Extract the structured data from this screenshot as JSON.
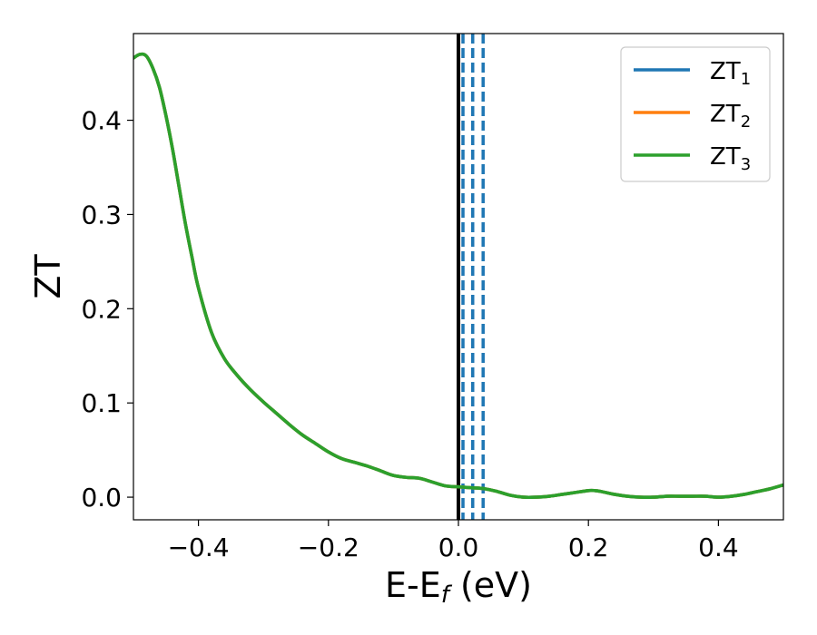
{
  "chart_data": {
    "type": "line",
    "xlabel": "E-E",
    "xlabel_sub": "f",
    "xlabel_unit": " (eV)",
    "ylabel": "ZT",
    "xlim": [
      -0.5,
      0.5
    ],
    "ylim": [
      -0.024,
      0.492
    ],
    "xticks": [
      -0.4,
      -0.2,
      0.0,
      0.2,
      0.4
    ],
    "xtick_labels": [
      "−0.4",
      "−0.2",
      "0.0",
      "0.2",
      "0.4"
    ],
    "yticks": [
      0.0,
      0.1,
      0.2,
      0.3,
      0.4
    ],
    "ytick_labels": [
      "0.0",
      "0.1",
      "0.2",
      "0.3",
      "0.4"
    ],
    "legend_position": "top-right",
    "grid": false,
    "series": [
      {
        "name": "ZT",
        "name_sub": "1",
        "color": "#1f77b4",
        "x": [
          -0.5,
          -0.49,
          -0.48,
          -0.47,
          -0.46,
          -0.45,
          -0.44,
          -0.43,
          -0.42,
          -0.41,
          -0.4,
          -0.38,
          -0.36,
          -0.34,
          -0.32,
          -0.3,
          -0.28,
          -0.26,
          -0.24,
          -0.22,
          -0.2,
          -0.18,
          -0.16,
          -0.14,
          -0.12,
          -0.1,
          -0.08,
          -0.06,
          -0.04,
          -0.02,
          0.0,
          0.02,
          0.04,
          0.06,
          0.08,
          0.1,
          0.12,
          0.14,
          0.16,
          0.18,
          0.2,
          0.21,
          0.22,
          0.24,
          0.26,
          0.28,
          0.3,
          0.32,
          0.34,
          0.36,
          0.38,
          0.4,
          0.42,
          0.44,
          0.46,
          0.48,
          0.5
        ],
        "values": [
          0.466,
          0.47,
          0.468,
          0.455,
          0.435,
          0.405,
          0.37,
          0.33,
          0.29,
          0.255,
          0.222,
          0.175,
          0.147,
          0.129,
          0.114,
          0.101,
          0.089,
          0.077,
          0.066,
          0.057,
          0.048,
          0.041,
          0.037,
          0.033,
          0.028,
          0.023,
          0.021,
          0.02,
          0.016,
          0.012,
          0.011,
          0.01,
          0.009,
          0.006,
          0.002,
          0.0,
          0.0,
          0.001,
          0.003,
          0.005,
          0.007,
          0.007,
          0.006,
          0.003,
          0.001,
          0.0,
          0.0,
          0.001,
          0.001,
          0.001,
          0.001,
          0.0,
          0.001,
          0.003,
          0.006,
          0.009,
          0.013
        ]
      },
      {
        "name": "ZT",
        "name_sub": "2",
        "color": "#ff7f0e",
        "x": [
          -0.5,
          -0.49,
          -0.48,
          -0.47,
          -0.46,
          -0.45,
          -0.44,
          -0.43,
          -0.42,
          -0.41,
          -0.4,
          -0.38,
          -0.36,
          -0.34,
          -0.32,
          -0.3,
          -0.28,
          -0.26,
          -0.24,
          -0.22,
          -0.2,
          -0.18,
          -0.16,
          -0.14,
          -0.12,
          -0.1,
          -0.08,
          -0.06,
          -0.04,
          -0.02,
          0.0,
          0.02,
          0.04,
          0.06,
          0.08,
          0.1,
          0.12,
          0.14,
          0.16,
          0.18,
          0.2,
          0.21,
          0.22,
          0.24,
          0.26,
          0.28,
          0.3,
          0.32,
          0.34,
          0.36,
          0.38,
          0.4,
          0.42,
          0.44,
          0.46,
          0.48,
          0.5
        ],
        "values": [
          0.466,
          0.47,
          0.468,
          0.455,
          0.435,
          0.405,
          0.37,
          0.33,
          0.29,
          0.255,
          0.222,
          0.175,
          0.147,
          0.129,
          0.114,
          0.101,
          0.089,
          0.077,
          0.066,
          0.057,
          0.048,
          0.041,
          0.037,
          0.033,
          0.028,
          0.023,
          0.021,
          0.02,
          0.016,
          0.012,
          0.011,
          0.01,
          0.009,
          0.006,
          0.002,
          0.0,
          0.0,
          0.001,
          0.003,
          0.005,
          0.007,
          0.007,
          0.006,
          0.003,
          0.001,
          0.0,
          0.0,
          0.001,
          0.001,
          0.001,
          0.001,
          0.0,
          0.001,
          0.003,
          0.006,
          0.009,
          0.013
        ]
      },
      {
        "name": "ZT",
        "name_sub": "3",
        "color": "#2ca02c",
        "x": [
          -0.5,
          -0.49,
          -0.48,
          -0.47,
          -0.46,
          -0.45,
          -0.44,
          -0.43,
          -0.42,
          -0.41,
          -0.4,
          -0.38,
          -0.36,
          -0.34,
          -0.32,
          -0.3,
          -0.28,
          -0.26,
          -0.24,
          -0.22,
          -0.2,
          -0.18,
          -0.16,
          -0.14,
          -0.12,
          -0.1,
          -0.08,
          -0.06,
          -0.04,
          -0.02,
          0.0,
          0.02,
          0.04,
          0.06,
          0.08,
          0.1,
          0.12,
          0.14,
          0.16,
          0.18,
          0.2,
          0.21,
          0.22,
          0.24,
          0.26,
          0.28,
          0.3,
          0.32,
          0.34,
          0.36,
          0.38,
          0.4,
          0.42,
          0.44,
          0.46,
          0.48,
          0.5
        ],
        "values": [
          0.466,
          0.47,
          0.468,
          0.455,
          0.435,
          0.405,
          0.37,
          0.33,
          0.29,
          0.255,
          0.222,
          0.175,
          0.147,
          0.129,
          0.114,
          0.101,
          0.089,
          0.077,
          0.066,
          0.057,
          0.048,
          0.041,
          0.037,
          0.033,
          0.028,
          0.023,
          0.021,
          0.02,
          0.016,
          0.012,
          0.011,
          0.01,
          0.009,
          0.006,
          0.002,
          0.0,
          0.0,
          0.001,
          0.003,
          0.005,
          0.007,
          0.007,
          0.006,
          0.003,
          0.001,
          0.0,
          0.0,
          0.001,
          0.001,
          0.001,
          0.001,
          0.0,
          0.001,
          0.003,
          0.006,
          0.009,
          0.013
        ]
      }
    ],
    "vertical_lines": [
      {
        "x": 0.0,
        "color": "#000000",
        "style": "solid"
      },
      {
        "x": 0.007,
        "color": "#1f77b4",
        "style": "dashed"
      },
      {
        "x": 0.022,
        "color": "#1f77b4",
        "style": "dashed"
      },
      {
        "x": 0.038,
        "color": "#1f77b4",
        "style": "dashed"
      }
    ]
  }
}
